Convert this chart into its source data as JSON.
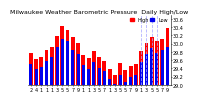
{
  "title": "Milwaukee Weather Barometric Pressure",
  "subtitle": "Daily High/Low",
  "high_color": "#ff0000",
  "low_color": "#0000ee",
  "dashed_color": "#aaaaff",
  "ylim": [
    29.0,
    30.7
  ],
  "ytick_vals": [
    29.0,
    29.2,
    29.4,
    29.6,
    29.8,
    30.0,
    30.2,
    30.4,
    30.6
  ],
  "ytick_labels": [
    "29.0",
    "29.2",
    "29.4",
    "29.6",
    "29.8",
    "30.0",
    "30.2",
    "30.4",
    "30.6"
  ],
  "x_labels": [
    "2",
    "4",
    "1",
    "1",
    "1",
    "3",
    "5",
    "5",
    "7",
    "9",
    "1",
    "1",
    "3",
    "5",
    "7",
    "1",
    "3",
    "5",
    "5",
    "7",
    "9",
    "1",
    "3",
    "5",
    "5",
    "7",
    "9"
  ],
  "highs": [
    29.77,
    29.62,
    29.68,
    29.85,
    29.92,
    30.18,
    30.42,
    30.32,
    30.15,
    30.02,
    29.72,
    29.65,
    29.82,
    29.68,
    29.58,
    29.38,
    29.25,
    29.52,
    29.35,
    29.45,
    29.5,
    29.82,
    30.02,
    30.15,
    30.05,
    30.12,
    30.38
  ],
  "lows": [
    29.5,
    29.38,
    29.44,
    29.58,
    29.68,
    29.92,
    30.12,
    30.05,
    29.85,
    29.74,
    29.48,
    29.38,
    29.55,
    29.42,
    29.34,
    29.15,
    29.02,
    29.25,
    29.08,
    29.18,
    29.24,
    29.55,
    29.75,
    29.88,
    29.78,
    29.85,
    29.92
  ],
  "dashed_indices": [
    21,
    22,
    23,
    24
  ],
  "legend_high": "High",
  "legend_low": "Low",
  "background_color": "#ffffff",
  "title_fontsize": 4.5,
  "tick_fontsize": 3.5,
  "legend_fontsize": 3.5
}
